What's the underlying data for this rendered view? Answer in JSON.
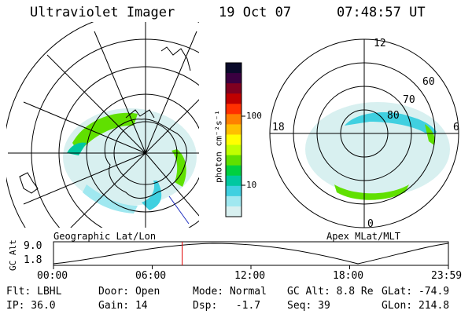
{
  "header": {
    "instrument": "Ultraviolet Imager",
    "date": "19 Oct 07",
    "time": "07:48:57 UT"
  },
  "colorbar": {
    "unit_label": "photon cm⁻²s⁻¹",
    "tick_labels": [
      "100",
      "10"
    ],
    "colors": [
      "#0a0a2a",
      "#3a0040",
      "#800020",
      "#c00000",
      "#ff3000",
      "#ff8000",
      "#ffc000",
      "#ffff00",
      "#c0ff00",
      "#60e000",
      "#00d040",
      "#00c8a0",
      "#40d0e0",
      "#a0e8f0",
      "#d8f0f0"
    ]
  },
  "left_panel": {
    "label": "Geographic Lat/Lon"
  },
  "right_panel": {
    "label": "Apex MLat/MLT",
    "mlt_labels": [
      "12",
      "18",
      "6",
      "0"
    ],
    "mlat_labels": [
      "60",
      "70",
      "80"
    ]
  },
  "altitude_plot": {
    "ylabel": "GC Alt",
    "y_ticks": [
      "9.0",
      "1.8"
    ],
    "x_ticks": [
      "00:00",
      "06:00",
      "12:00",
      "18:00",
      "23:59"
    ],
    "marker_time": "07:48:57",
    "marker_color": "#e00000"
  },
  "status": {
    "flt": "Flt: LBHL",
    "ip": "IP: 36.0",
    "door": "Door: Open",
    "gain": "Gain: 14",
    "mode": "Mode: Normal",
    "dsp": "Dsp:   -1.7",
    "gc_alt": "GC Alt: 8.8 Re",
    "seq": "Seq: 39",
    "glat": "GLat: -74.9",
    "glon": "GLon: 214.8"
  }
}
